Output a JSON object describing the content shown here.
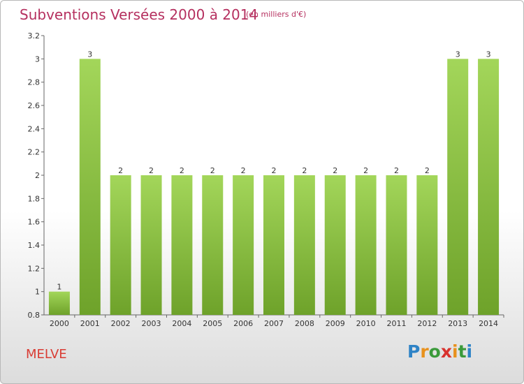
{
  "header": {
    "title": "Subventions Versées 2000 à 2014",
    "unit_note": "(en milliers d'€)"
  },
  "footer": {
    "commune": "MELVE",
    "logo_letters": [
      "P",
      "r",
      "o",
      "x",
      "i",
      "t",
      "i"
    ],
    "logo_colors": [
      "#2e83c6",
      "#e8911d",
      "#3a9a3a",
      "#d8322e",
      "#e8911d",
      "#3a9a3a",
      "#2e83c6"
    ]
  },
  "colors": {
    "title": "#b5305f",
    "bar_light": "#a3d65a",
    "bar_dark": "#6ea22a",
    "commune": "#d93c34"
  },
  "chart_data": {
    "type": "bar",
    "title": "Subventions Versées 2000 à 2014",
    "subtitle": "(en milliers d'€)",
    "categories": [
      "2000",
      "2001",
      "2002",
      "2003",
      "2004",
      "2005",
      "2006",
      "2007",
      "2008",
      "2009",
      "2010",
      "2011",
      "2012",
      "2013",
      "2014"
    ],
    "values": [
      1,
      3,
      2,
      2,
      2,
      2,
      2,
      2,
      2,
      2,
      2,
      2,
      2,
      3,
      3
    ],
    "data_labels": [
      "1",
      "3",
      "2",
      "2",
      "2",
      "2",
      "2",
      "2",
      "2",
      "2",
      "2",
      "2",
      "2",
      "3",
      "3"
    ],
    "ylim": [
      0.8,
      3.2
    ],
    "y_ticks": [
      0.8,
      1,
      1.2,
      1.4,
      1.6,
      1.8,
      2,
      2.2,
      2.4,
      2.6,
      2.8,
      3,
      3.2
    ],
    "y_tick_labels": [
      "0.8",
      "1",
      "1.2",
      "1.4",
      "1.6",
      "1.8",
      "2",
      "2.2",
      "2.4",
      "2.6",
      "2.8",
      "3",
      "3.2"
    ],
    "grid": false,
    "legend": "none"
  }
}
